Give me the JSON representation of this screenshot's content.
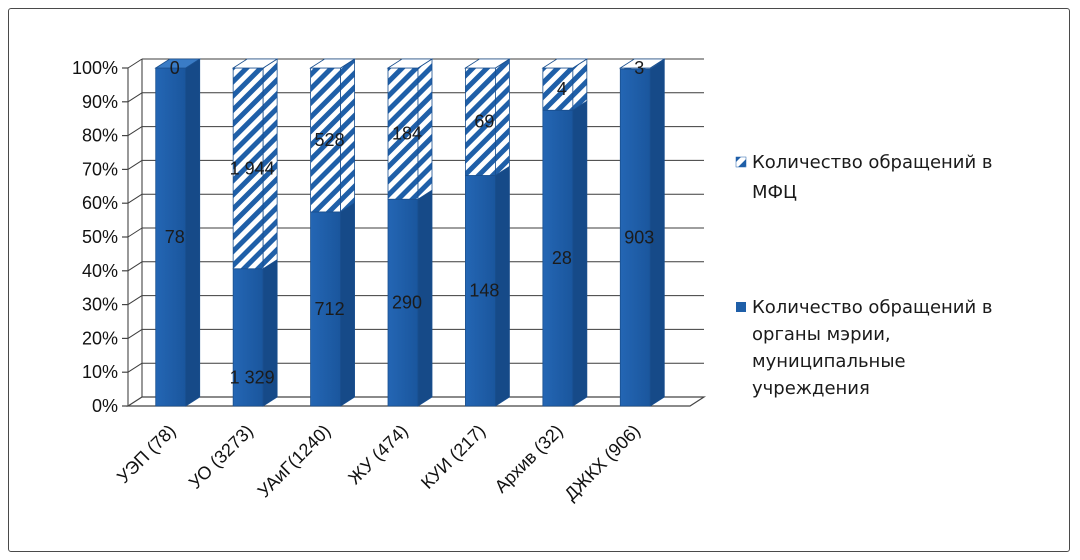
{
  "chart_data": {
    "type": "bar",
    "stacked": "percent",
    "categories": [
      "УЭП (78)",
      "УО (3273)",
      "УАиГ(1240)",
      "ЖУ (474)",
      "КУИ (217)",
      "Архив (32)",
      "ДЖКХ (906)"
    ],
    "series": [
      {
        "name": "Количество обращений в органы мэрии, муниципальные учреждения",
        "values": [
          78,
          1329,
          712,
          290,
          148,
          28,
          903
        ],
        "labels": [
          "78",
          "1 329",
          "712",
          "290",
          "148",
          "28",
          "903"
        ],
        "color": "#1f5fa8",
        "pattern": "solid"
      },
      {
        "name": "Количество обращений в МФЦ",
        "values": [
          0,
          1944,
          528,
          184,
          69,
          4,
          3
        ],
        "labels": [
          "0",
          "1 944",
          "528",
          "184",
          "69",
          "4",
          "3"
        ],
        "color": "#1f5fa8",
        "pattern": "diagonal-stripes"
      }
    ],
    "y_ticks": [
      "0%",
      "10%",
      "20%",
      "30%",
      "40%",
      "50%",
      "60%",
      "70%",
      "80%",
      "90%",
      "100%"
    ],
    "ylim": [
      0,
      100
    ],
    "grid": true,
    "legend": "right",
    "title": "",
    "xlabel": "",
    "ylabel": ""
  }
}
